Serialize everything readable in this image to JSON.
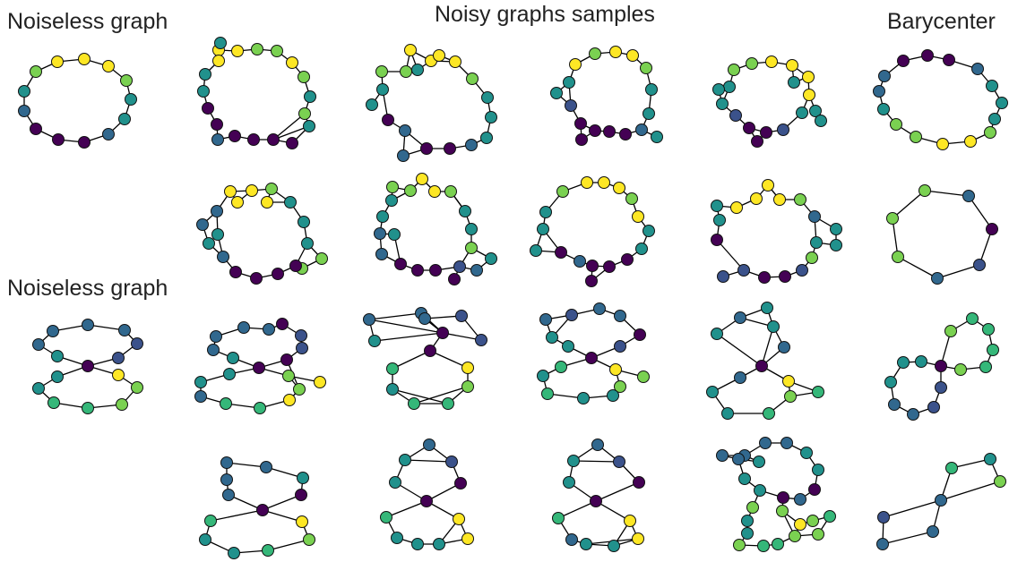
{
  "titles": {
    "noiseless_top": "Noiseless graph",
    "noisy": "Noisy graphs samples",
    "barycenter": "Barycenter",
    "noiseless_bottom": "Noiseless graph"
  },
  "colors": {
    "dark_purple": "#440154",
    "indigo": "#3b528b",
    "blue_teal": "#31688e",
    "teal": "#21918c",
    "green_teal": "#35b779",
    "light_green": "#7ad151",
    "yellow": "#fde725"
  }
}
